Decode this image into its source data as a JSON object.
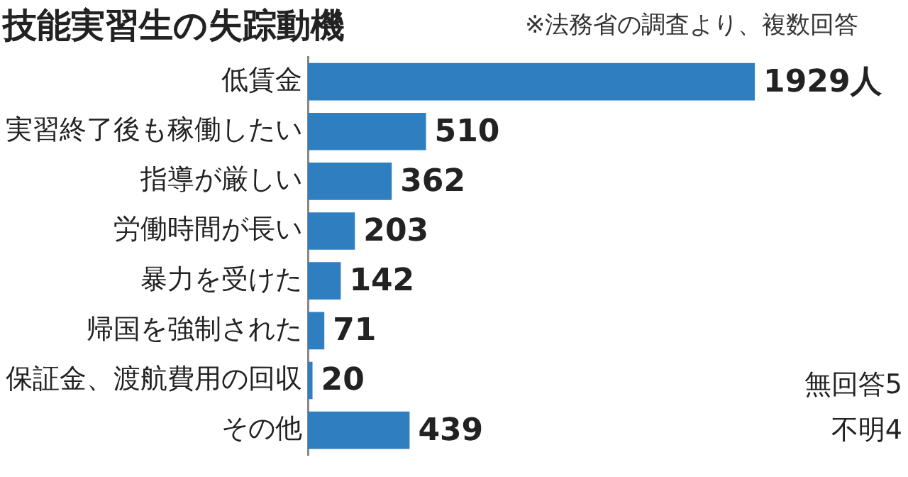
{
  "chart_data": {
    "type": "bar",
    "orientation": "horizontal",
    "title": "技能実習生の失踪動機",
    "subtitle": "※法務省の調査より、複数回答",
    "categories": [
      "低賃金",
      "実習終了後も稼働したい",
      "指導が厳しい",
      "労働時間が長い",
      "暴力を受けた",
      "帰国を強制された",
      "保証金、渡航費用の回収",
      "その他"
    ],
    "values": [
      1929,
      510,
      362,
      203,
      142,
      71,
      20,
      439
    ],
    "value_labels": [
      "1929人",
      "510",
      "362",
      "203",
      "142",
      "71",
      "20",
      "439"
    ],
    "color": "#2f7fc0",
    "annotations": [
      "無回答5",
      "不明4"
    ]
  }
}
